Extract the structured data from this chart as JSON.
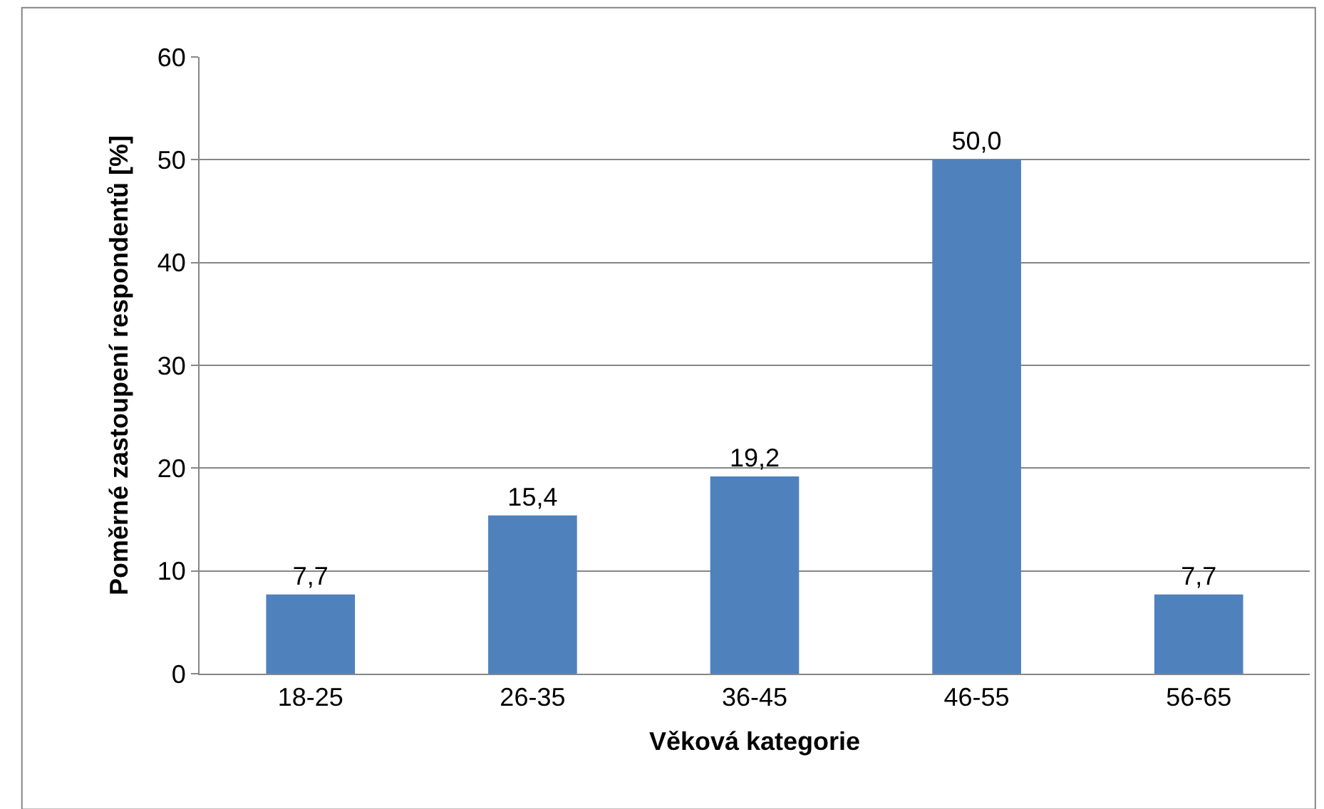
{
  "chart_data": {
    "type": "bar",
    "xlabel": "Věková kategorie",
    "ylabel": "Poměrné zastoupení respondentů [%]",
    "categories": [
      "18-25",
      "26-35",
      "36-45",
      "46-55",
      "56-65"
    ],
    "values": [
      7.7,
      15.4,
      19.2,
      50.0,
      7.7
    ],
    "value_labels": [
      "7,7",
      "15,4",
      "19,2",
      "50,0",
      "7,7"
    ],
    "color": "#4f81bd",
    "ylim": [
      0,
      60
    ],
    "yticks": [
      0,
      10,
      20,
      30,
      40,
      50,
      60
    ],
    "grid": "y",
    "legend": false
  }
}
